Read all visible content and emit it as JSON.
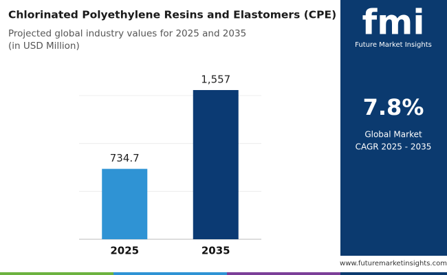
{
  "chart_data": {
    "type": "bar",
    "title": "Chlorinated Polyethylene Resins and Elastomers (CPE) Market",
    "subtitle": [
      "Projected global industry values for 2025 and 2035",
      "(in USD Million)"
    ],
    "categories": [
      "2025",
      "2035"
    ],
    "values": [
      734.7,
      1557
    ],
    "value_labels": [
      "734.7",
      "1,557"
    ],
    "colors": [
      "#2f93d4",
      "#0b3a73"
    ],
    "ylim": [
      0,
      1600
    ],
    "yticks": [
      0,
      500,
      1000,
      1500
    ],
    "grid": true
  },
  "sidebar": {
    "logo": "fmi",
    "brand": "Future Market Insights",
    "cagr": "7.8%",
    "cagr_label": [
      "Global Market",
      "CAGR 2025 - 2035"
    ]
  },
  "footer": {
    "website": "www.futuremarketinsights.com"
  }
}
